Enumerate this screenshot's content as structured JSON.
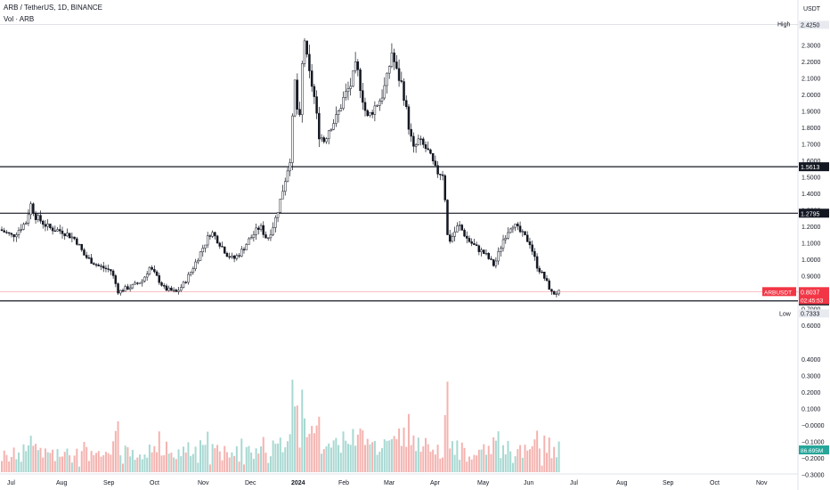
{
  "header": {
    "symbol_line": "ARB / TetherUS, 1D, BINANCE",
    "volume_line": "Vol · ARB",
    "currency": "USDT"
  },
  "price_axis": {
    "high_label": "High",
    "low_label": "Low",
    "last_label": "ARBUSDT",
    "last_time": "02:45:53"
  },
  "colors": {
    "up": "#26a69a",
    "down": "#ef5350",
    "candle": "#131722",
    "vol_up": "#a8d8d2",
    "vol_down": "#f4b3b0",
    "last_price": "#f23645",
    "level_line": "#131722",
    "volume_tag": "#26a69a"
  },
  "chart_data": {
    "type": "candlestick",
    "timeframe": "1D",
    "x_axis_labels": [
      "Jul",
      "Aug",
      "Sep",
      "Oct",
      "Nov",
      "Dec",
      "2024",
      "Feb",
      "Mar",
      "Apr",
      "May",
      "Jun",
      "Jul",
      "Aug",
      "Sep",
      "Oct",
      "Nov"
    ],
    "price_ticks": [
      "2.3000",
      "2.2000",
      "2.1000",
      "2.0000",
      "1.9000",
      "1.8000",
      "1.7000",
      "1.6000",
      "1.5000",
      "1.4000",
      "1.3000",
      "1.2000",
      "1.1000",
      "1.0000",
      "0.9000",
      "0.8000",
      "0.7000",
      "0.6000"
    ],
    "volume_ticks": [
      "0.4000",
      "0.3000",
      "0.2000",
      "0.1000",
      "-0.0000",
      "-0.1000",
      "-0.2000",
      "-0.3000"
    ],
    "price_range": [
      0.6,
      2.44
    ],
    "high": "2.4250",
    "low": "0.7333",
    "last_price": "0.8037",
    "volume_value": "86.695M",
    "horizontal_levels": [
      {
        "value": 1.5613,
        "label": "1.5613"
      },
      {
        "value": 1.2795,
        "label": "1.2795"
      },
      {
        "value": 0.7474,
        "label": "0.7474"
      }
    ],
    "price_path": [
      [
        0,
        1.18
      ],
      [
        14,
        1.14
      ],
      [
        30,
        1.23
      ],
      [
        34,
        1.34
      ],
      [
        40,
        1.26
      ],
      [
        55,
        1.19
      ],
      [
        70,
        1.17
      ],
      [
        85,
        1.12
      ],
      [
        95,
        1.02
      ],
      [
        110,
        0.96
      ],
      [
        125,
        0.93
      ],
      [
        133,
        0.8
      ],
      [
        140,
        0.82
      ],
      [
        150,
        0.84
      ],
      [
        160,
        0.87
      ],
      [
        168,
        0.95
      ],
      [
        175,
        0.9
      ],
      [
        185,
        0.82
      ],
      [
        198,
        0.8
      ],
      [
        205,
        0.84
      ],
      [
        215,
        0.93
      ],
      [
        225,
        1.04
      ],
      [
        237,
        1.17
      ],
      [
        245,
        1.11
      ],
      [
        255,
        1.03
      ],
      [
        262,
        1.0
      ],
      [
        270,
        1.04
      ],
      [
        280,
        1.12
      ],
      [
        292,
        1.2
      ],
      [
        300,
        1.12
      ],
      [
        308,
        1.22
      ],
      [
        314,
        1.34
      ],
      [
        320,
        1.48
      ],
      [
        326,
        1.62
      ],
      [
        331,
        2.08
      ],
      [
        336,
        1.78
      ],
      [
        341,
        2.38
      ],
      [
        346,
        2.15
      ],
      [
        352,
        2.02
      ],
      [
        358,
        1.76
      ],
      [
        364,
        1.72
      ],
      [
        370,
        1.8
      ],
      [
        378,
        1.86
      ],
      [
        386,
        1.98
      ],
      [
        394,
        2.06
      ],
      [
        400,
        2.18
      ],
      [
        405,
        2.04
      ],
      [
        412,
        1.85
      ],
      [
        420,
        1.92
      ],
      [
        428,
        1.98
      ],
      [
        434,
        2.08
      ],
      [
        440,
        2.26
      ],
      [
        445,
        2.14
      ],
      [
        452,
        2.05
      ],
      [
        458,
        1.84
      ],
      [
        464,
        1.66
      ],
      [
        470,
        1.72
      ],
      [
        480,
        1.66
      ],
      [
        490,
        1.53
      ],
      [
        498,
        1.52
      ],
      [
        503,
        1.1
      ],
      [
        508,
        1.14
      ],
      [
        515,
        1.21
      ],
      [
        525,
        1.12
      ],
      [
        535,
        1.07
      ],
      [
        545,
        1.03
      ],
      [
        555,
        0.96
      ],
      [
        565,
        1.12
      ],
      [
        575,
        1.22
      ],
      [
        585,
        1.16
      ],
      [
        595,
        1.1
      ],
      [
        603,
        0.96
      ],
      [
        612,
        0.88
      ],
      [
        620,
        0.79
      ],
      [
        628,
        0.8
      ]
    ],
    "last_candle_x": 628
  }
}
